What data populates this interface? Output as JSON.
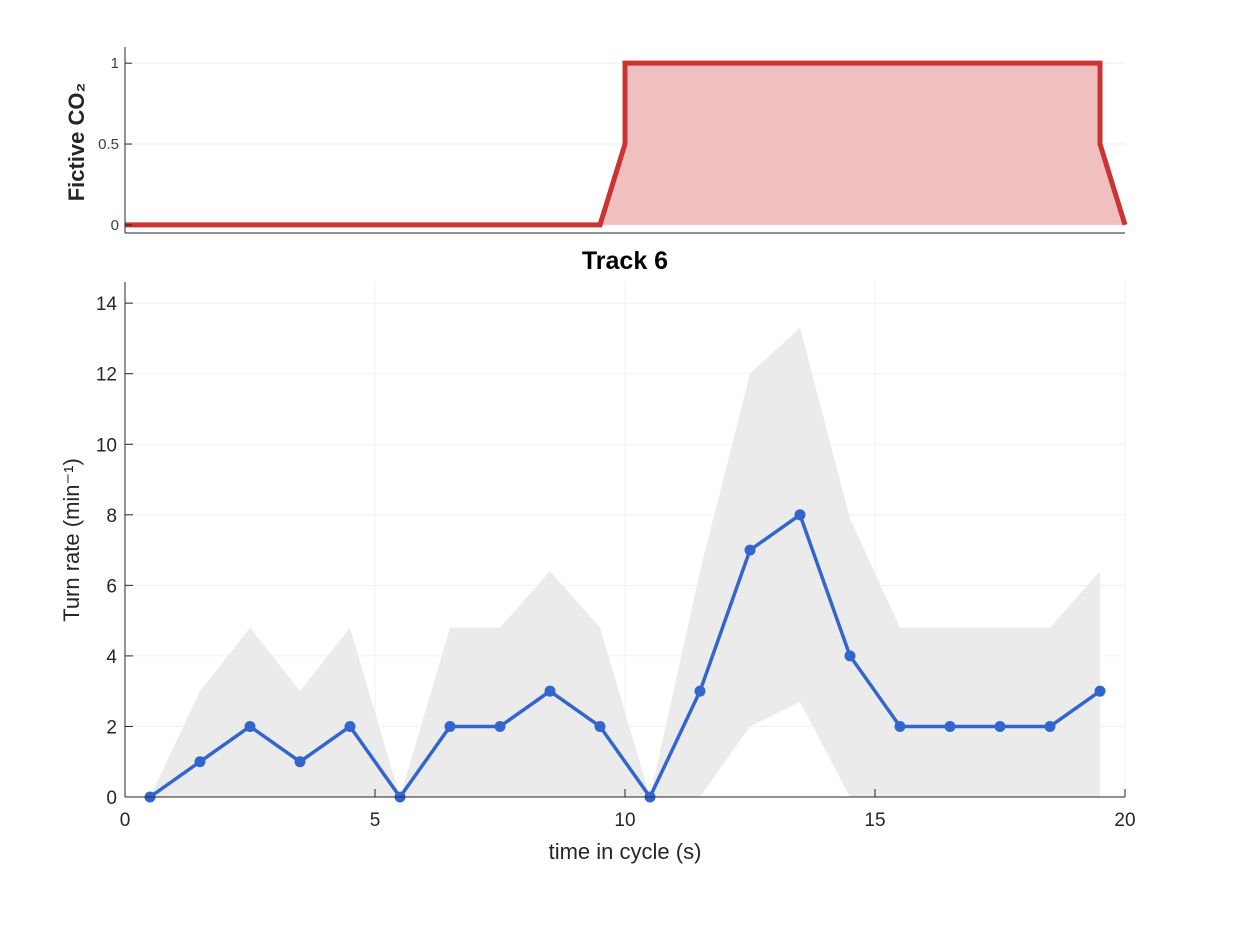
{
  "chart_data": [
    {
      "type": "area",
      "title": "",
      "xlabel": "",
      "ylabel": "Fictive CO₂",
      "xlim": [
        0,
        20
      ],
      "ylim": [
        -0.05,
        1.1
      ],
      "yticks": [
        0,
        0.5,
        1
      ],
      "ytick_labels": [
        "0",
        "0.5",
        "1"
      ],
      "grid": true,
      "series": [
        {
          "color": "#cc3333",
          "fill": "#f0c0c0",
          "x": [
            0,
            9.5,
            10,
            10,
            19.5,
            19.5,
            20
          ],
          "y": [
            0,
            0,
            0.5,
            1,
            1,
            0.5,
            0
          ]
        }
      ]
    },
    {
      "type": "line",
      "title": "Track 6",
      "xlabel": "time in cycle (s)",
      "ylabel": "Turn rate (min⁻¹)",
      "xlim": [
        0,
        20
      ],
      "ylim": [
        0,
        14.6
      ],
      "xticks": [
        0,
        5,
        10,
        15,
        20
      ],
      "xtick_labels": [
        "0",
        "5",
        "10",
        "15",
        "20"
      ],
      "yticks": [
        0,
        2,
        4,
        6,
        8,
        10,
        12,
        14
      ],
      "ytick_labels": [
        "0",
        "2",
        "4",
        "6",
        "8",
        "10",
        "12",
        "14"
      ],
      "grid": true,
      "series": [
        {
          "color": "#3366cc",
          "band_color": "#ebebeb",
          "x": [
            0.5,
            1.5,
            2.5,
            3.5,
            4.5,
            5.5,
            6.5,
            7.5,
            8.5,
            9.5,
            10.5,
            11.5,
            12.5,
            13.5,
            14.5,
            15.5,
            16.5,
            17.5,
            18.5,
            19.5
          ],
          "y": [
            0,
            1,
            2,
            1,
            2,
            0,
            2,
            2,
            3,
            2,
            0,
            3,
            7,
            8,
            4,
            2,
            2,
            2,
            2,
            3
          ],
          "upper": [
            0,
            3,
            4.8,
            3,
            4.8,
            0,
            4.8,
            4.8,
            6.4,
            4.8,
            0,
            6.4,
            12,
            13.3,
            7.9,
            4.8,
            4.8,
            4.8,
            4.8,
            6.4
          ],
          "lower": [
            0,
            0,
            0,
            0,
            0,
            0,
            0,
            0,
            0,
            0,
            0,
            0,
            2,
            2.7,
            0,
            0,
            0,
            0,
            0,
            0
          ]
        }
      ]
    }
  ]
}
